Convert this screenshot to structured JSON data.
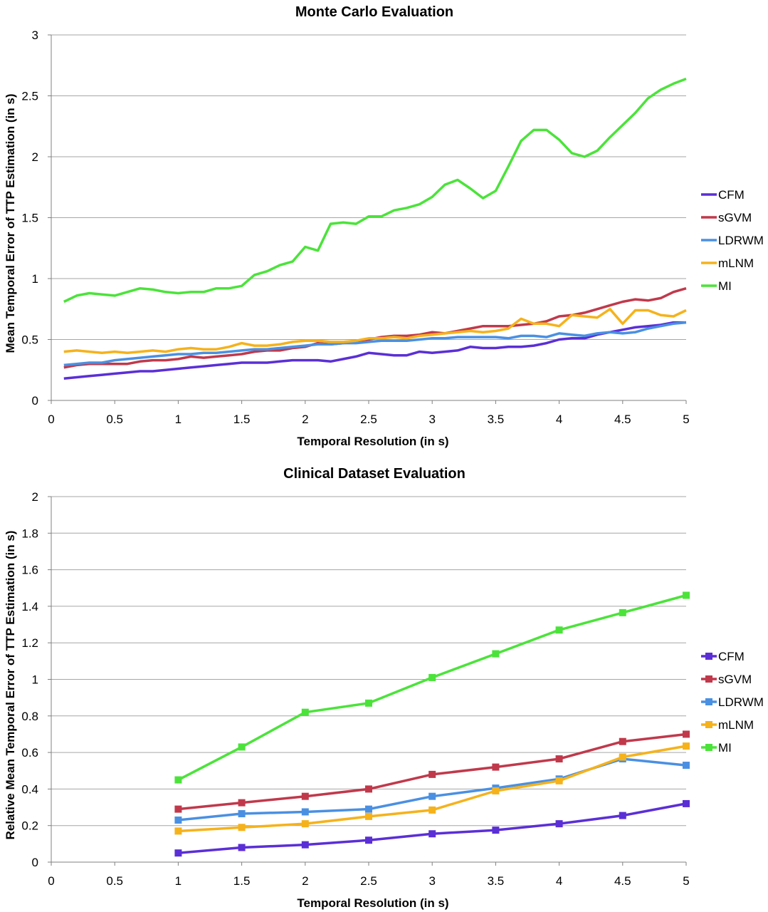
{
  "chart_data": [
    {
      "type": "line",
      "title": "Monte Carlo Evaluation",
      "xlabel": "Temporal Resolution (in s)",
      "ylabel": "Mean Temporal Error of TTP Estimation (in s)",
      "xlim": [
        0,
        5
      ],
      "ylim": [
        0,
        3
      ],
      "xticks": [
        "0",
        "0.5",
        "1",
        "1.5",
        "2",
        "2.5",
        "3",
        "3.5",
        "4",
        "4.5",
        "5"
      ],
      "yticks": [
        "0",
        "0.5",
        "1",
        "1.5",
        "2",
        "2.5",
        "3"
      ],
      "grid": true,
      "legend": "right",
      "markers": false,
      "x": [
        0.1,
        0.2,
        0.3,
        0.4,
        0.5,
        0.6,
        0.7,
        0.8,
        0.9,
        1.0,
        1.1,
        1.2,
        1.3,
        1.4,
        1.5,
        1.6,
        1.7,
        1.8,
        1.9,
        2.0,
        2.1,
        2.2,
        2.3,
        2.4,
        2.5,
        2.6,
        2.7,
        2.8,
        2.9,
        3.0,
        3.1,
        3.2,
        3.3,
        3.4,
        3.5,
        3.6,
        3.7,
        3.8,
        3.9,
        4.0,
        4.1,
        4.2,
        4.3,
        4.4,
        4.5,
        4.6,
        4.7,
        4.8,
        4.9,
        5.0
      ],
      "series": [
        {
          "name": "CFM",
          "color": "#5b2fd6",
          "values": [
            0.18,
            0.19,
            0.2,
            0.21,
            0.22,
            0.23,
            0.24,
            0.24,
            0.25,
            0.26,
            0.27,
            0.28,
            0.29,
            0.3,
            0.31,
            0.31,
            0.31,
            0.32,
            0.33,
            0.33,
            0.33,
            0.32,
            0.34,
            0.36,
            0.39,
            0.38,
            0.37,
            0.37,
            0.4,
            0.39,
            0.4,
            0.41,
            0.44,
            0.43,
            0.43,
            0.44,
            0.44,
            0.45,
            0.47,
            0.5,
            0.51,
            0.51,
            0.54,
            0.56,
            0.58,
            0.6,
            0.61,
            0.62,
            0.64,
            0.64
          ]
        },
        {
          "name": "sGVM",
          "color": "#c0394b",
          "values": [
            0.27,
            0.29,
            0.3,
            0.3,
            0.3,
            0.3,
            0.32,
            0.33,
            0.33,
            0.34,
            0.36,
            0.35,
            0.36,
            0.37,
            0.38,
            0.4,
            0.41,
            0.41,
            0.43,
            0.44,
            0.47,
            0.46,
            0.47,
            0.49,
            0.5,
            0.52,
            0.53,
            0.53,
            0.54,
            0.56,
            0.55,
            0.57,
            0.59,
            0.61,
            0.61,
            0.61,
            0.62,
            0.63,
            0.65,
            0.69,
            0.7,
            0.72,
            0.75,
            0.78,
            0.81,
            0.83,
            0.82,
            0.84,
            0.89,
            0.92
          ]
        },
        {
          "name": "LDRWM",
          "color": "#4a90e2",
          "values": [
            0.29,
            0.3,
            0.31,
            0.31,
            0.33,
            0.34,
            0.35,
            0.36,
            0.37,
            0.38,
            0.38,
            0.39,
            0.39,
            0.4,
            0.41,
            0.42,
            0.42,
            0.43,
            0.44,
            0.45,
            0.46,
            0.46,
            0.47,
            0.47,
            0.48,
            0.49,
            0.49,
            0.49,
            0.5,
            0.51,
            0.51,
            0.52,
            0.52,
            0.52,
            0.52,
            0.51,
            0.53,
            0.53,
            0.52,
            0.55,
            0.54,
            0.53,
            0.55,
            0.56,
            0.55,
            0.56,
            0.59,
            0.61,
            0.63,
            0.64
          ]
        },
        {
          "name": "mLNM",
          "color": "#f5b21b",
          "values": [
            0.4,
            0.41,
            0.4,
            0.39,
            0.4,
            0.39,
            0.4,
            0.41,
            0.4,
            0.42,
            0.43,
            0.42,
            0.42,
            0.44,
            0.47,
            0.45,
            0.45,
            0.46,
            0.48,
            0.49,
            0.49,
            0.48,
            0.48,
            0.49,
            0.51,
            0.51,
            0.52,
            0.51,
            0.53,
            0.54,
            0.55,
            0.56,
            0.57,
            0.56,
            0.57,
            0.59,
            0.67,
            0.63,
            0.63,
            0.61,
            0.7,
            0.69,
            0.68,
            0.75,
            0.63,
            0.74,
            0.74,
            0.7,
            0.69,
            0.74
          ]
        },
        {
          "name": "MI",
          "color": "#4be33a",
          "values": [
            0.81,
            0.86,
            0.88,
            0.87,
            0.86,
            0.89,
            0.92,
            0.91,
            0.89,
            0.88,
            0.89,
            0.89,
            0.92,
            0.92,
            0.94,
            1.03,
            1.06,
            1.11,
            1.14,
            1.26,
            1.23,
            1.45,
            1.46,
            1.45,
            1.51,
            1.51,
            1.56,
            1.58,
            1.61,
            1.67,
            1.77,
            1.81,
            1.74,
            1.66,
            1.72,
            1.92,
            2.13,
            2.22,
            2.22,
            2.14,
            2.03,
            2.0,
            2.05,
            2.16,
            2.26,
            2.36,
            2.48,
            2.55,
            2.6,
            2.64
          ]
        }
      ]
    },
    {
      "type": "line",
      "title": "Clinical Dataset Evaluation",
      "xlabel": "Temporal Resolution (in s)",
      "ylabel": "Relative Mean Temporal Error of TTP Estimation (in s)",
      "xlim": [
        0,
        5
      ],
      "ylim": [
        0,
        2
      ],
      "xticks": [
        "0",
        "0.5",
        "1",
        "1.5",
        "2",
        "2.5",
        "3",
        "3.5",
        "4",
        "4.5",
        "5"
      ],
      "yticks": [
        "0",
        "0.2",
        "0.4",
        "0.6",
        "0.8",
        "1",
        "1.2",
        "1.4",
        "1.6",
        "1.8",
        "2"
      ],
      "grid": true,
      "legend": "right",
      "markers": true,
      "x": [
        1.0,
        1.5,
        2.0,
        2.5,
        3.0,
        3.5,
        4.0,
        4.5,
        5.0
      ],
      "series": [
        {
          "name": "CFM",
          "color": "#5b2fd6",
          "values": [
            0.05,
            0.08,
            0.095,
            0.12,
            0.155,
            0.175,
            0.21,
            0.255,
            0.32
          ]
        },
        {
          "name": "sGVM",
          "color": "#c0394b",
          "values": [
            0.29,
            0.325,
            0.36,
            0.4,
            0.48,
            0.52,
            0.565,
            0.66,
            0.7
          ]
        },
        {
          "name": "LDRWM",
          "color": "#4a90e2",
          "values": [
            0.23,
            0.265,
            0.275,
            0.29,
            0.36,
            0.405,
            0.455,
            0.565,
            0.53
          ]
        },
        {
          "name": "mLNM",
          "color": "#f5b21b",
          "values": [
            0.17,
            0.19,
            0.21,
            0.25,
            0.285,
            0.39,
            0.445,
            0.575,
            0.635
          ]
        },
        {
          "name": "MI",
          "color": "#4be33a",
          "values": [
            0.45,
            0.63,
            0.82,
            0.87,
            1.01,
            1.14,
            1.27,
            1.365,
            1.46
          ]
        }
      ]
    }
  ]
}
